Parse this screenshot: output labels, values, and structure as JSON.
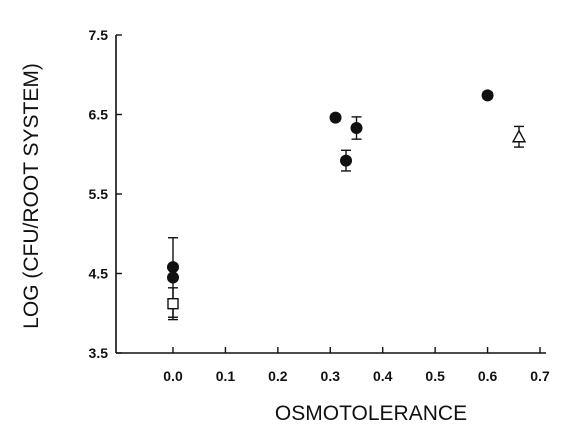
{
  "chart_data": {
    "type": "scatter",
    "title": "",
    "xlabel": "OSMOTOLERANCE",
    "ylabel": "LOG (CFU/ROOT SYSTEM)",
    "xlim": [
      -0.07,
      0.7
    ],
    "ylim": [
      3.5,
      7.5
    ],
    "xticks": [
      0.0,
      0.1,
      0.2,
      0.3,
      0.4,
      0.5,
      0.6,
      0.7
    ],
    "xtick_labels": [
      "0.0",
      "0.1",
      "0.2",
      "0.3",
      "0.4",
      "0.5",
      "0.6",
      "0.7"
    ],
    "yticks": [
      3.5,
      4.5,
      5.5,
      6.5,
      7.5
    ],
    "ytick_labels": [
      "3.5",
      "4.5",
      "5.5",
      "6.5",
      "7.5"
    ],
    "grid": false,
    "legend": "none",
    "points": [
      {
        "x": 0.0,
        "y": 4.58,
        "marker": "filled-circle",
        "err": 0
      },
      {
        "x": 0.0,
        "y": 4.45,
        "marker": "filled-circle",
        "err": 0.5
      },
      {
        "x": 0.0,
        "y": 4.12,
        "marker": "open-square",
        "err": 0.2
      },
      {
        "x": 0.31,
        "y": 6.46,
        "marker": "filled-circle",
        "err": 0.04
      },
      {
        "x": 0.33,
        "y": 5.92,
        "marker": "filled-circle",
        "err": 0.13
      },
      {
        "x": 0.35,
        "y": 6.33,
        "marker": "filled-circle",
        "err": 0.14
      },
      {
        "x": 0.6,
        "y": 6.74,
        "marker": "filled-circle",
        "err": 0.04
      },
      {
        "x": 0.66,
        "y": 6.22,
        "marker": "open-triangle",
        "err": 0.13
      }
    ]
  }
}
